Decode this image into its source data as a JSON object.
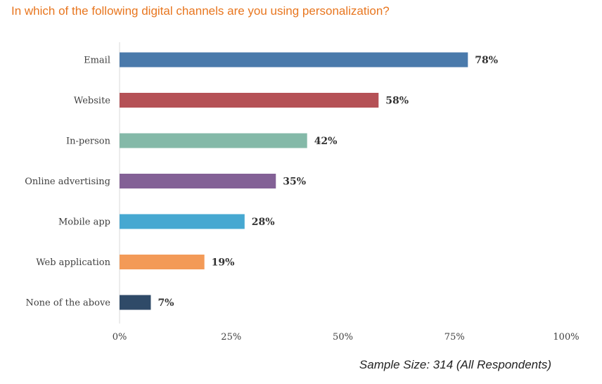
{
  "title": "In which of the following digital channels are you using personalization?",
  "footnote": "Sample Size: 314 (All Respondents)",
  "chart_data": {
    "type": "bar",
    "orientation": "horizontal",
    "categories": [
      "Email",
      "Website",
      "In-person",
      "Online advertising",
      "Mobile app",
      "Web application",
      "None of the above"
    ],
    "values": [
      78,
      58,
      42,
      35,
      28,
      19,
      7
    ],
    "value_labels": [
      "78%",
      "58%",
      "42%",
      "35%",
      "28%",
      "19%",
      "7%"
    ],
    "colors": [
      "#4a7aab",
      "#b55156",
      "#84b9a8",
      "#836196",
      "#46a8d1",
      "#f39a57",
      "#2f4a68"
    ],
    "xlim": [
      0,
      100
    ],
    "xticks": [
      0,
      25,
      50,
      75,
      100
    ],
    "xtick_labels": [
      "0%",
      "25%",
      "50%",
      "75%",
      "100%"
    ],
    "grid": false,
    "legend": "none"
  }
}
